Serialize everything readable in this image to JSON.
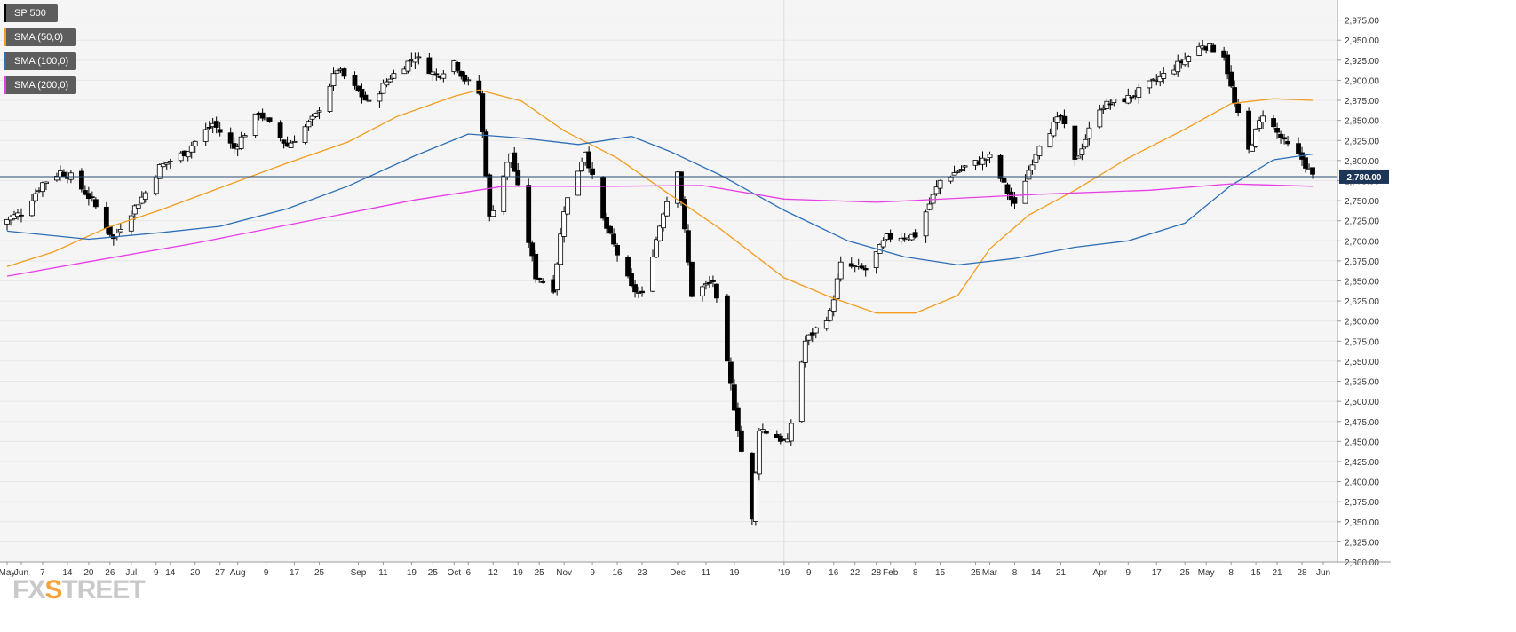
{
  "colors": {
    "background": "#f5f5f5",
    "grid": "#e6e6e6",
    "up_candle": "#ffffff",
    "down_candle": "#000000",
    "sma50": "#f39c1f",
    "sma100": "#2c6fb7",
    "sma200": "#e83de8",
    "price_line": "#2c4a72",
    "price_label_bg": "#1d3557",
    "logo_fx": "#c9c9c9",
    "logo_accent": "#f4a43b"
  },
  "logo": {
    "fx": "FX",
    "x": "S",
    "street": "TREET"
  },
  "legend": [
    {
      "label": "SP 500",
      "color": "#000000"
    },
    {
      "label": "SMA (50,0)",
      "color": "#f39c1f"
    },
    {
      "label": "SMA (100,0)",
      "color": "#2c6fb7"
    },
    {
      "label": "SMA (200,0)",
      "color": "#e83de8"
    }
  ],
  "chart_data": {
    "type": "candlestick",
    "title": "",
    "xlabel": "",
    "ylabel": "",
    "ylim": [
      2300,
      3000
    ],
    "grid": true,
    "legend_position": "top-left",
    "current_price": 2780.0,
    "current_price_label": "2,780.00",
    "y_ticks": [
      2300,
      2325,
      2350,
      2375,
      2400,
      2425,
      2450,
      2475,
      2500,
      2525,
      2550,
      2575,
      2600,
      2625,
      2650,
      2675,
      2700,
      2725,
      2750,
      2775,
      2800,
      2825,
      2850,
      2875,
      2900,
      2925,
      2950,
      2975
    ],
    "y_tick_labels": [
      "2,300.00",
      "2,325.00",
      "2,350.00",
      "2,375.00",
      "2,400.00",
      "2,425.00",
      "2,450.00",
      "2,475.00",
      "2,500.00",
      "2,525.00",
      "2,550.00",
      "2,575.00",
      "2,600.00",
      "2,625.00",
      "2,650.00",
      "2,675.00",
      "2,700.00",
      "2,725.00",
      "2,750.00",
      "2,775.00",
      "2,800.00",
      "2,825.00",
      "2,850.00",
      "2,875.00",
      "2,900.00",
      "2,925.00",
      "2,950.00",
      "2,975.00"
    ],
    "x_ticks": [
      {
        "label": "May",
        "date": "2018-05-28"
      },
      {
        "label": "Jun",
        "date": "2018-06-01"
      },
      {
        "label": "7",
        "date": "2018-06-07"
      },
      {
        "label": "14",
        "date": "2018-06-14"
      },
      {
        "label": "20",
        "date": "2018-06-20"
      },
      {
        "label": "26",
        "date": "2018-06-26"
      },
      {
        "label": "Jul",
        "date": "2018-07-02"
      },
      {
        "label": "9",
        "date": "2018-07-09"
      },
      {
        "label": "14",
        "date": "2018-07-13"
      },
      {
        "label": "20",
        "date": "2018-07-20"
      },
      {
        "label": "27",
        "date": "2018-07-27"
      },
      {
        "label": "Aug",
        "date": "2018-08-01"
      },
      {
        "label": "9",
        "date": "2018-08-09"
      },
      {
        "label": "17",
        "date": "2018-08-17"
      },
      {
        "label": "25",
        "date": "2018-08-24"
      },
      {
        "label": "Sep",
        "date": "2018-09-04"
      },
      {
        "label": "11",
        "date": "2018-09-11"
      },
      {
        "label": "19",
        "date": "2018-09-19"
      },
      {
        "label": "25",
        "date": "2018-09-25"
      },
      {
        "label": "Oct",
        "date": "2018-10-01"
      },
      {
        "label": "6",
        "date": "2018-10-05"
      },
      {
        "label": "12",
        "date": "2018-10-12"
      },
      {
        "label": "19",
        "date": "2018-10-19"
      },
      {
        "label": "25",
        "date": "2018-10-25"
      },
      {
        "label": "Nov",
        "date": "2018-11-01"
      },
      {
        "label": "9",
        "date": "2018-11-09"
      },
      {
        "label": "16",
        "date": "2018-11-16"
      },
      {
        "label": "23",
        "date": "2018-11-23"
      },
      {
        "label": "Dec",
        "date": "2018-12-03"
      },
      {
        "label": "11",
        "date": "2018-12-11"
      },
      {
        "label": "19",
        "date": "2018-12-19"
      },
      {
        "label": "'19",
        "date": "2019-01-02"
      },
      {
        "label": "9",
        "date": "2019-01-09"
      },
      {
        "label": "16",
        "date": "2019-01-16"
      },
      {
        "label": "22",
        "date": "2019-01-22"
      },
      {
        "label": "28",
        "date": "2019-01-28"
      },
      {
        "label": "Feb",
        "date": "2019-02-01"
      },
      {
        "label": "8",
        "date": "2019-02-08"
      },
      {
        "label": "15",
        "date": "2019-02-15"
      },
      {
        "label": "25",
        "date": "2019-02-25"
      },
      {
        "label": "Mar",
        "date": "2019-03-01"
      },
      {
        "label": "8",
        "date": "2019-03-08"
      },
      {
        "label": "14",
        "date": "2019-03-14"
      },
      {
        "label": "21",
        "date": "2019-03-21"
      },
      {
        "label": "Apr",
        "date": "2019-04-01"
      },
      {
        "label": "9",
        "date": "2019-04-09"
      },
      {
        "label": "17",
        "date": "2019-04-17"
      },
      {
        "label": "25",
        "date": "2019-04-25"
      },
      {
        "label": "May",
        "date": "2019-05-01"
      },
      {
        "label": "8",
        "date": "2019-05-08"
      },
      {
        "label": "15",
        "date": "2019-05-15"
      },
      {
        "label": "21",
        "date": "2019-05-21"
      },
      {
        "label": "28",
        "date": "2019-05-28"
      },
      {
        "label": "Jun",
        "date": "2019-06-03"
      }
    ],
    "close_path": [
      [
        "2018-05-25",
        2721
      ],
      [
        "2018-06-01",
        2735
      ],
      [
        "2018-06-07",
        2772
      ],
      [
        "2018-06-12",
        2786
      ],
      [
        "2018-06-15",
        2780
      ],
      [
        "2018-06-21",
        2750
      ],
      [
        "2018-06-25",
        2718
      ],
      [
        "2018-06-27",
        2702
      ],
      [
        "2018-06-29",
        2718
      ],
      [
        "2018-07-06",
        2760
      ],
      [
        "2018-07-10",
        2792
      ],
      [
        "2018-07-17",
        2810
      ],
      [
        "2018-07-25",
        2846
      ],
      [
        "2018-07-31",
        2815
      ],
      [
        "2018-08-07",
        2860
      ],
      [
        "2018-08-15",
        2818
      ],
      [
        "2018-08-23",
        2856
      ],
      [
        "2018-08-29",
        2914
      ],
      [
        "2018-09-07",
        2871
      ],
      [
        "2018-09-13",
        2904
      ],
      [
        "2018-09-20",
        2930
      ],
      [
        "2018-09-26",
        2905
      ],
      [
        "2018-10-01",
        2924
      ],
      [
        "2018-10-04",
        2901
      ],
      [
        "2018-10-08",
        2884
      ],
      [
        "2018-10-10",
        2785
      ],
      [
        "2018-10-11",
        2728
      ],
      [
        "2018-10-17",
        2809
      ],
      [
        "2018-10-24",
        2656
      ],
      [
        "2018-10-29",
        2641
      ],
      [
        "2018-11-01",
        2740
      ],
      [
        "2018-11-07",
        2813
      ],
      [
        "2018-11-12",
        2726
      ],
      [
        "2018-11-20",
        2641
      ],
      [
        "2018-11-23",
        2632
      ],
      [
        "2018-11-29",
        2737
      ],
      [
        "2018-12-03",
        2790
      ],
      [
        "2018-12-07",
        2633
      ],
      [
        "2018-12-13",
        2650
      ],
      [
        "2018-12-20",
        2467
      ],
      [
        "2018-12-24",
        2351
      ],
      [
        "2018-12-26",
        2467
      ],
      [
        "2019-01-03",
        2448
      ],
      [
        "2019-01-08",
        2575
      ],
      [
        "2019-01-15",
        2610
      ],
      [
        "2019-01-18",
        2670
      ],
      [
        "2019-01-25",
        2664
      ],
      [
        "2019-01-31",
        2704
      ],
      [
        "2019-02-08",
        2707
      ],
      [
        "2019-02-15",
        2775
      ],
      [
        "2019-02-22",
        2792
      ],
      [
        "2019-03-01",
        2804
      ],
      [
        "2019-03-08",
        2743
      ],
      [
        "2019-03-15",
        2822
      ],
      [
        "2019-03-21",
        2855
      ],
      [
        "2019-03-25",
        2798
      ],
      [
        "2019-04-01",
        2867
      ],
      [
        "2019-04-09",
        2878
      ],
      [
        "2019-04-17",
        2900
      ],
      [
        "2019-04-25",
        2926
      ],
      [
        "2019-04-30",
        2945
      ],
      [
        "2019-05-06",
        2932
      ],
      [
        "2019-05-09",
        2870
      ],
      [
        "2019-05-13",
        2812
      ],
      [
        "2019-05-17",
        2859
      ],
      [
        "2019-05-23",
        2822
      ],
      [
        "2019-05-28",
        2802
      ],
      [
        "2019-05-31",
        2780
      ]
    ],
    "series": [
      {
        "name": "SMA (50,0)",
        "color": "#f39c1f",
        "points": [
          [
            "2018-05-28",
            2668
          ],
          [
            "2018-06-10",
            2686
          ],
          [
            "2018-06-25",
            2716
          ],
          [
            "2018-07-10",
            2738
          ],
          [
            "2018-07-27",
            2766
          ],
          [
            "2018-08-15",
            2797
          ],
          [
            "2018-09-01",
            2823
          ],
          [
            "2018-09-15",
            2855
          ],
          [
            "2018-10-01",
            2880
          ],
          [
            "2018-10-08",
            2888
          ],
          [
            "2018-10-20",
            2874
          ],
          [
            "2018-11-01",
            2837
          ],
          [
            "2018-11-16",
            2803
          ],
          [
            "2018-12-01",
            2757
          ],
          [
            "2018-12-15",
            2715
          ],
          [
            "2019-01-02",
            2654
          ],
          [
            "2019-01-15",
            2630
          ],
          [
            "2019-01-28",
            2610
          ],
          [
            "2019-02-08",
            2610
          ],
          [
            "2019-02-20",
            2632
          ],
          [
            "2019-03-01",
            2690
          ],
          [
            "2019-03-12",
            2732
          ],
          [
            "2019-03-25",
            2763
          ],
          [
            "2019-04-09",
            2803
          ],
          [
            "2019-04-25",
            2839
          ],
          [
            "2019-05-08",
            2871
          ],
          [
            "2019-05-20",
            2877
          ],
          [
            "2019-05-31",
            2875
          ]
        ]
      },
      {
        "name": "SMA (100,0)",
        "color": "#2c6fb7",
        "points": [
          [
            "2018-05-28",
            2712
          ],
          [
            "2018-06-20",
            2702
          ],
          [
            "2018-07-10",
            2710
          ],
          [
            "2018-07-27",
            2718
          ],
          [
            "2018-08-15",
            2740
          ],
          [
            "2018-09-01",
            2768
          ],
          [
            "2018-09-20",
            2806
          ],
          [
            "2018-10-05",
            2833
          ],
          [
            "2018-10-20",
            2828
          ],
          [
            "2018-11-05",
            2820
          ],
          [
            "2018-11-20",
            2830
          ],
          [
            "2018-12-01",
            2811
          ],
          [
            "2018-12-15",
            2782
          ],
          [
            "2019-01-02",
            2738
          ],
          [
            "2019-01-20",
            2700
          ],
          [
            "2019-02-05",
            2680
          ],
          [
            "2019-02-20",
            2670
          ],
          [
            "2019-03-08",
            2678
          ],
          [
            "2019-03-25",
            2692
          ],
          [
            "2019-04-09",
            2700
          ],
          [
            "2019-04-25",
            2722
          ],
          [
            "2019-05-08",
            2769
          ],
          [
            "2019-05-20",
            2801
          ],
          [
            "2019-05-31",
            2808
          ]
        ]
      },
      {
        "name": "SMA (200,0)",
        "color": "#e83de8",
        "points": [
          [
            "2018-05-28",
            2656
          ],
          [
            "2018-06-20",
            2674
          ],
          [
            "2018-07-20",
            2697
          ],
          [
            "2018-08-20",
            2724
          ],
          [
            "2018-09-20",
            2751
          ],
          [
            "2018-10-15",
            2768
          ],
          [
            "2018-11-15",
            2768
          ],
          [
            "2018-12-10",
            2769
          ],
          [
            "2019-01-02",
            2752
          ],
          [
            "2019-01-28",
            2748
          ],
          [
            "2019-02-20",
            2753
          ],
          [
            "2019-03-15",
            2758
          ],
          [
            "2019-04-15",
            2763
          ],
          [
            "2019-05-08",
            2771
          ],
          [
            "2019-05-31",
            2768
          ]
        ]
      }
    ]
  }
}
